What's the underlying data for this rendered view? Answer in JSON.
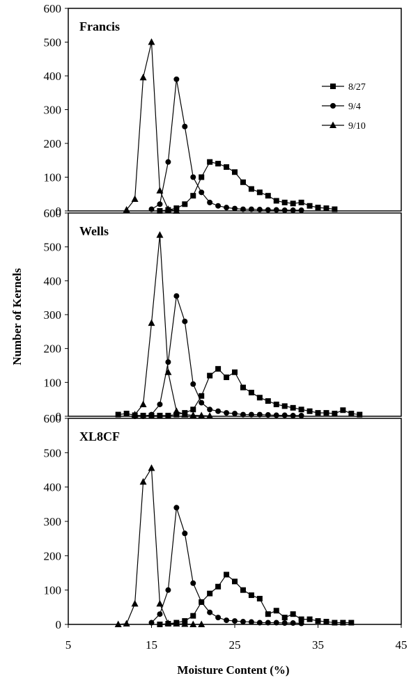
{
  "chart_data": {
    "type": "line",
    "ylabel": "Number of Kernels",
    "xlabel": "Moisture Content (%)",
    "xlim": [
      5,
      45
    ],
    "ylim": [
      0,
      600
    ],
    "xticks": [
      "5",
      "15",
      "25",
      "35",
      "45"
    ],
    "yticks": [
      "0",
      "100",
      "200",
      "300",
      "400",
      "500",
      "600"
    ],
    "legend": {
      "placement": "top-right",
      "entries": [
        "8/27",
        "9/4",
        "9/10"
      ]
    },
    "panels": [
      {
        "title": "Francis",
        "series": [
          {
            "name": "8/27",
            "marker": "square",
            "x": [
              16,
              17,
              18,
              19,
              20,
              21,
              22,
              23,
              24,
              25,
              26,
              27,
              28,
              29,
              30,
              31,
              32,
              33,
              34,
              35,
              36,
              37
            ],
            "y": [
              0,
              3,
              8,
              20,
              45,
              100,
              145,
              140,
              130,
              115,
              85,
              65,
              55,
              45,
              30,
              25,
              22,
              25,
              15,
              10,
              8,
              5
            ]
          },
          {
            "name": "9/4",
            "marker": "circle",
            "x": [
              15,
              16,
              17,
              18,
              19,
              20,
              21,
              22,
              23,
              24,
              25,
              26,
              27,
              28,
              29,
              30,
              31,
              32,
              33
            ],
            "y": [
              5,
              20,
              145,
              390,
              250,
              100,
              55,
              25,
              15,
              10,
              7,
              5,
              5,
              4,
              3,
              3,
              2,
              2,
              2
            ]
          },
          {
            "name": "9/10",
            "marker": "triangle",
            "x": [
              12,
              13,
              14,
              15,
              16,
              17,
              18
            ],
            "y": [
              3,
              35,
              395,
              500,
              60,
              5,
              0
            ]
          }
        ]
      },
      {
        "title": "Wells",
        "series": [
          {
            "name": "8/27",
            "marker": "square",
            "x": [
              11,
              12,
              13,
              14,
              15,
              16,
              17,
              18,
              19,
              20,
              21,
              22,
              23,
              24,
              25,
              26,
              27,
              28,
              29,
              30,
              31,
              32,
              33,
              34,
              35,
              36,
              37,
              38,
              39,
              40
            ],
            "y": [
              5,
              8,
              3,
              2,
              2,
              2,
              2,
              5,
              10,
              20,
              60,
              120,
              140,
              115,
              130,
              85,
              70,
              55,
              45,
              35,
              30,
              25,
              20,
              15,
              10,
              10,
              8,
              18,
              8,
              5
            ]
          },
          {
            "name": "9/4",
            "marker": "circle",
            "x": [
              13,
              14,
              15,
              16,
              17,
              18,
              19,
              20,
              21,
              22,
              23,
              24,
              25,
              26,
              27,
              28,
              29,
              30,
              31,
              32,
              33
            ],
            "y": [
              0,
              0,
              5,
              35,
              160,
              355,
              280,
              95,
              40,
              20,
              15,
              10,
              8,
              5,
              5,
              5,
              4,
              3,
              3,
              2,
              2
            ]
          },
          {
            "name": "9/10",
            "marker": "triangle",
            "x": [
              13,
              14,
              15,
              16,
              17,
              18,
              19,
              20,
              21,
              22
            ],
            "y": [
              5,
              35,
              275,
              535,
              130,
              15,
              5,
              3,
              2,
              1
            ]
          }
        ]
      },
      {
        "title": "XL8CF",
        "series": [
          {
            "name": "8/27",
            "marker": "square",
            "x": [
              16,
              17,
              18,
              19,
              20,
              21,
              22,
              23,
              24,
              25,
              26,
              27,
              28,
              29,
              30,
              31,
              32,
              33,
              34,
              35,
              36,
              37,
              38,
              39
            ],
            "y": [
              0,
              2,
              5,
              10,
              25,
              65,
              90,
              110,
              145,
              125,
              100,
              85,
              75,
              30,
              40,
              20,
              30,
              15,
              15,
              10,
              8,
              5,
              5,
              5
            ]
          },
          {
            "name": "9/4",
            "marker": "circle",
            "x": [
              15,
              16,
              17,
              18,
              19,
              20,
              21,
              22,
              23,
              24,
              25,
              26,
              27,
              28,
              29,
              30,
              31,
              32,
              33
            ],
            "y": [
              5,
              30,
              100,
              340,
              265,
              120,
              65,
              35,
              20,
              12,
              10,
              8,
              7,
              5,
              5,
              5,
              4,
              4,
              3
            ]
          },
          {
            "name": "9/10",
            "marker": "triangle",
            "x": [
              11,
              12,
              13,
              14,
              15,
              16,
              17,
              18,
              19,
              20,
              21
            ],
            "y": [
              0,
              2,
              60,
              415,
              455,
              60,
              3,
              2,
              1,
              0,
              0
            ]
          }
        ]
      }
    ]
  }
}
